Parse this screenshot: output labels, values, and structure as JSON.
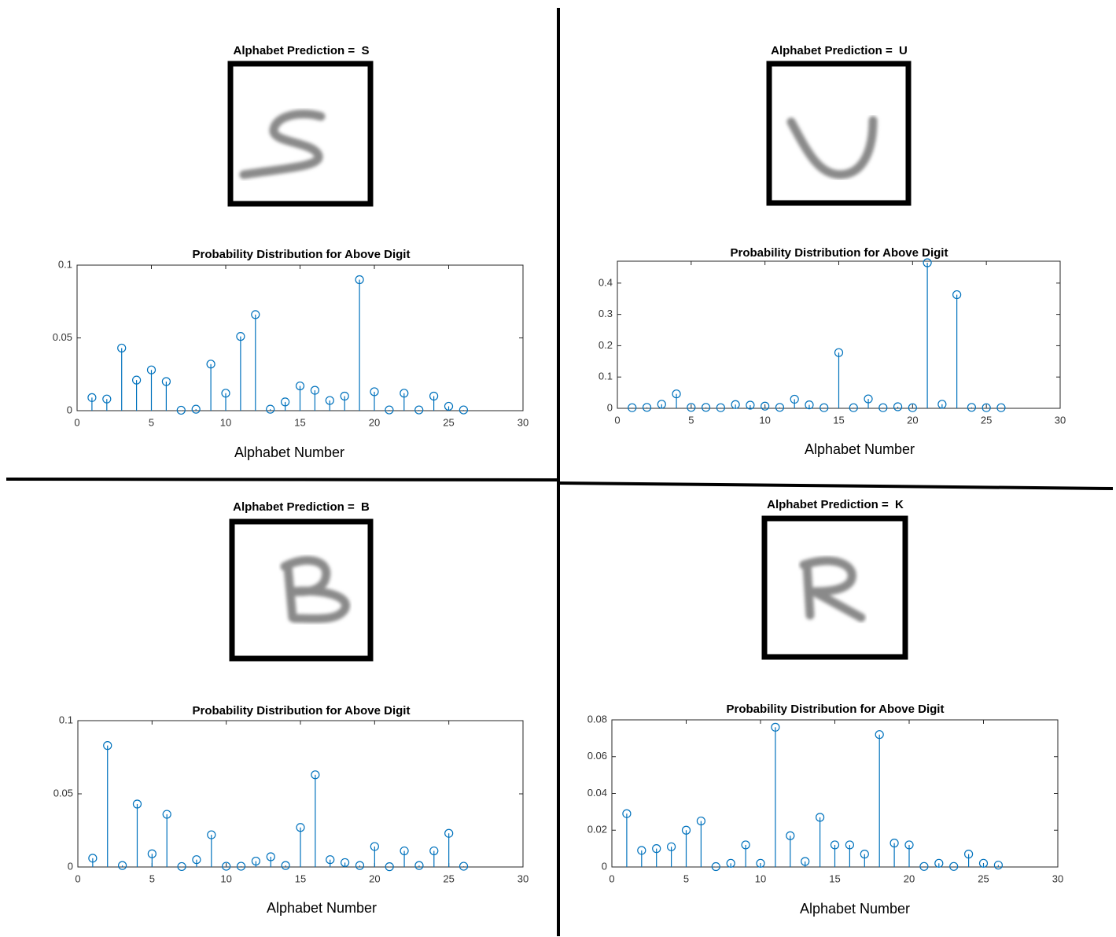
{
  "chart_data": [
    {
      "type": "stem",
      "panel_title": "Alphabet Prediction =  S",
      "title": "Probability Distribution for Above Digit",
      "xlabel": "Alphabet Number",
      "x": [
        1,
        2,
        3,
        4,
        5,
        6,
        7,
        8,
        9,
        10,
        11,
        12,
        13,
        14,
        15,
        16,
        17,
        18,
        19,
        20,
        21,
        22,
        23,
        24,
        25,
        26
      ],
      "values": [
        0.009,
        0.008,
        0.043,
        0.021,
        0.028,
        0.02,
        0.0003,
        0.001,
        0.032,
        0.012,
        0.051,
        0.066,
        0.001,
        0.006,
        0.017,
        0.014,
        0.007,
        0.01,
        0.09,
        0.013,
        0.0005,
        0.012,
        0.0005,
        0.01,
        0.003,
        0.0005
      ],
      "color": "#0072bd",
      "xlim": [
        0,
        30
      ],
      "xticks": [
        0,
        5,
        10,
        15,
        20,
        25,
        30
      ],
      "ylim": [
        0,
        0.1
      ],
      "yticks": [
        0,
        0.05,
        0.1
      ],
      "grid": false
    },
    {
      "type": "stem",
      "panel_title": "Alphabet Prediction =  U",
      "title": "Probability Distribution for Above Digit",
      "xlabel": "Alphabet Number",
      "x": [
        1,
        2,
        3,
        4,
        5,
        6,
        7,
        8,
        9,
        10,
        11,
        12,
        13,
        14,
        15,
        16,
        17,
        18,
        19,
        20,
        21,
        22,
        23,
        24,
        25,
        26
      ],
      "values": [
        0.002,
        0.003,
        0.013,
        0.046,
        0.003,
        0.003,
        0.002,
        0.012,
        0.01,
        0.007,
        0.003,
        0.029,
        0.011,
        0.002,
        0.178,
        0.002,
        0.03,
        0.002,
        0.005,
        0.002,
        0.465,
        0.013,
        0.363,
        0.003,
        0.002,
        0.002
      ],
      "color": "#0072bd",
      "xlim": [
        0,
        30
      ],
      "xticks": [
        0,
        5,
        10,
        15,
        20,
        25,
        30
      ],
      "ylim": [
        0,
        0.47
      ],
      "yticks": [
        0,
        0.1,
        0.2,
        0.3,
        0.4
      ],
      "grid": false
    },
    {
      "type": "stem",
      "panel_title": "Alphabet Prediction =  B",
      "title": "Probability Distribution for Above Digit",
      "xlabel": "Alphabet Number",
      "x": [
        1,
        2,
        3,
        4,
        5,
        6,
        7,
        8,
        9,
        10,
        11,
        12,
        13,
        14,
        15,
        16,
        17,
        18,
        19,
        20,
        21,
        22,
        23,
        24,
        25,
        26
      ],
      "values": [
        0.006,
        0.083,
        0.001,
        0.043,
        0.009,
        0.036,
        0.0003,
        0.005,
        0.022,
        0.0005,
        0.0005,
        0.004,
        0.007,
        0.001,
        0.027,
        0.063,
        0.005,
        0.003,
        0.001,
        0.014,
        0.0002,
        0.011,
        0.001,
        0.011,
        0.023,
        0.0005
      ],
      "color": "#0072bd",
      "xlim": [
        0,
        30
      ],
      "xticks": [
        0,
        5,
        10,
        15,
        20,
        25,
        30
      ],
      "ylim": [
        0,
        0.1
      ],
      "yticks": [
        0,
        0.05,
        0.1
      ],
      "grid": false
    },
    {
      "type": "stem",
      "panel_title": "Alphabet Prediction =  K",
      "title": "Probability Distribution for Above Digit",
      "xlabel": "Alphabet Number",
      "x": [
        1,
        2,
        3,
        4,
        5,
        6,
        7,
        8,
        9,
        10,
        11,
        12,
        13,
        14,
        15,
        16,
        17,
        18,
        19,
        20,
        21,
        22,
        23,
        24,
        25,
        26
      ],
      "values": [
        0.029,
        0.009,
        0.01,
        0.011,
        0.02,
        0.025,
        0.0002,
        0.002,
        0.012,
        0.002,
        0.076,
        0.017,
        0.003,
        0.027,
        0.012,
        0.012,
        0.007,
        0.072,
        0.013,
        0.012,
        0.0003,
        0.002,
        0.0003,
        0.007,
        0.002,
        0.001
      ],
      "color": "#0072bd",
      "xlim": [
        0,
        30
      ],
      "xticks": [
        0,
        5,
        10,
        15,
        20,
        25,
        30
      ],
      "ylim": [
        0,
        0.08
      ],
      "yticks": [
        0,
        0.02,
        0.04,
        0.06,
        0.08
      ],
      "grid": false
    }
  ]
}
